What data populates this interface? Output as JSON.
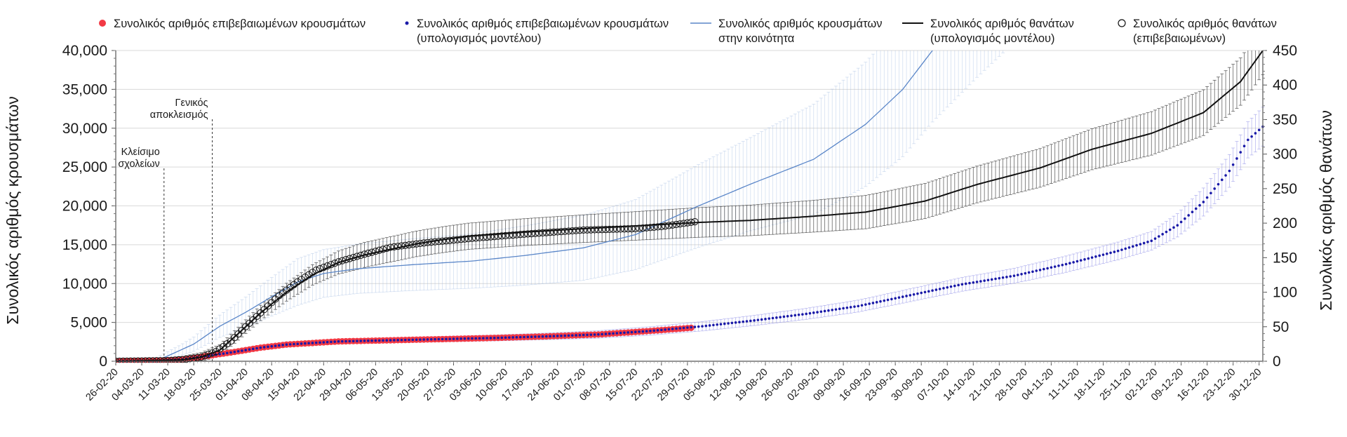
{
  "chart_data": {
    "type": "line",
    "x_axis": {
      "type": "date",
      "start": "2020-02-26",
      "end": "2020-12-31",
      "tick_labels": [
        "26-02-20",
        "04-03-20",
        "11-03-20",
        "18-03-20",
        "25-03-20",
        "01-04-20",
        "08-04-20",
        "15-04-20",
        "22-04-20",
        "29-04-20",
        "06-05-20",
        "13-05-20",
        "20-05-20",
        "27-05-20",
        "03-06-20",
        "10-06-20",
        "17-06-20",
        "24-06-20",
        "01-07-20",
        "08-07-20",
        "15-07-20",
        "22-07-20",
        "29-07-20",
        "05-08-20",
        "12-08-20",
        "19-08-20",
        "26-08-20",
        "02-09-20",
        "09-09-20",
        "16-09-20",
        "23-09-20",
        "30-09-20",
        "07-10-20",
        "14-10-20",
        "21-10-20",
        "28-10-20",
        "04-11-20",
        "11-11-20",
        "18-11-20",
        "25-11-20",
        "02-12-20",
        "09-12-20",
        "16-12-20",
        "23-12-20",
        "30-12-20"
      ]
    },
    "y_axis_left": {
      "label": "Συνολικός αριθμός κρουσμάτων",
      "ylim": [
        0,
        40000
      ],
      "tick_labels": [
        "0",
        "5,000",
        "10,000",
        "15,000",
        "20,000",
        "25,000",
        "30,000",
        "35,000",
        "40,000"
      ]
    },
    "y_axis_right": {
      "label": "Συνολικός αριθμός θανάτων",
      "ylim": [
        0,
        450
      ],
      "tick_labels": [
        "0",
        "50",
        "100",
        "150",
        "200",
        "250",
        "300",
        "350",
        "400",
        "450"
      ]
    },
    "grid": true,
    "legend_position": "top",
    "annotations": [
      {
        "date": "2020-03-10",
        "lines": [
          "Κλείσιμο",
          "σχολείων"
        ]
      },
      {
        "date": "2020-03-23",
        "lines": [
          "Γενικός",
          "αποκλεισμός"
        ]
      }
    ],
    "series": [
      {
        "name": "Συνολικός αριθμός επιβεβαιωμένων κρουσμάτων",
        "axis": "left",
        "style": "large-dots",
        "color": "#f23a45",
        "points": [
          [
            "2020-02-26",
            0
          ],
          [
            "2020-03-08",
            30
          ],
          [
            "2020-03-15",
            230
          ],
          [
            "2020-03-22",
            700
          ],
          [
            "2020-03-29",
            1200
          ],
          [
            "2020-04-05",
            1750
          ],
          [
            "2020-04-12",
            2150
          ],
          [
            "2020-04-19",
            2350
          ],
          [
            "2020-04-26",
            2550
          ],
          [
            "2020-05-10",
            2700
          ],
          [
            "2020-05-24",
            2850
          ],
          [
            "2020-06-07",
            3000
          ],
          [
            "2020-06-21",
            3200
          ],
          [
            "2020-07-05",
            3450
          ],
          [
            "2020-07-19",
            3900
          ],
          [
            "2020-07-30",
            4300
          ]
        ]
      },
      {
        "name": "Συνολικός αριθμός επιβεβαιωμένων κρουσμάτων (υπολογισμός μοντέλου)",
        "axis": "left",
        "style": "small-dots",
        "color": "#1a1aa8",
        "points": [
          [
            "2020-02-26",
            0
          ],
          [
            "2020-03-08",
            30
          ],
          [
            "2020-03-15",
            230
          ],
          [
            "2020-03-22",
            700
          ],
          [
            "2020-03-29",
            1200
          ],
          [
            "2020-04-05",
            1750
          ],
          [
            "2020-04-12",
            2150
          ],
          [
            "2020-04-19",
            2350
          ],
          [
            "2020-04-26",
            2550
          ],
          [
            "2020-05-10",
            2700
          ],
          [
            "2020-05-24",
            2850
          ],
          [
            "2020-06-07",
            3000
          ],
          [
            "2020-06-21",
            3200
          ],
          [
            "2020-07-05",
            3450
          ],
          [
            "2020-07-19",
            3900
          ],
          [
            "2020-08-02",
            4500
          ],
          [
            "2020-08-16",
            5250
          ],
          [
            "2020-08-30",
            6100
          ],
          [
            "2020-09-13",
            7100
          ],
          [
            "2020-09-27",
            8500
          ],
          [
            "2020-10-11",
            9900
          ],
          [
            "2020-10-25",
            11000
          ],
          [
            "2020-11-08",
            12500
          ],
          [
            "2020-11-22",
            14200
          ],
          [
            "2020-12-01",
            15500
          ],
          [
            "2020-12-08",
            17500
          ],
          [
            "2020-12-15",
            20500
          ],
          [
            "2020-12-22",
            24500
          ],
          [
            "2020-12-27",
            28500
          ],
          [
            "2020-12-31",
            30200
          ]
        ],
        "error_band": [
          [
            "2020-02-26",
            0
          ],
          [
            "2020-04-15",
            250
          ],
          [
            "2020-06-15",
            400
          ],
          [
            "2020-08-15",
            650
          ],
          [
            "2020-10-15",
            900
          ],
          [
            "2020-12-01",
            1200
          ],
          [
            "2020-12-31",
            2500
          ]
        ]
      },
      {
        "name": "Συνολικός αριθμός κρουσμάτων στην κοινότητα",
        "axis": "left",
        "style": "line",
        "color": "#5a86c8",
        "points": [
          [
            "2020-02-26",
            0
          ],
          [
            "2020-03-08",
            50
          ],
          [
            "2020-03-12",
            900
          ],
          [
            "2020-03-18",
            2200
          ],
          [
            "2020-03-25",
            4500
          ],
          [
            "2020-04-01",
            6300
          ],
          [
            "2020-04-08",
            8300
          ],
          [
            "2020-04-15",
            10200
          ],
          [
            "2020-04-22",
            11300
          ],
          [
            "2020-05-01",
            11900
          ],
          [
            "2020-05-15",
            12400
          ],
          [
            "2020-06-01",
            12900
          ],
          [
            "2020-06-15",
            13600
          ],
          [
            "2020-07-01",
            14600
          ],
          [
            "2020-07-15",
            16300
          ],
          [
            "2020-08-01",
            20000
          ],
          [
            "2020-08-15",
            22800
          ],
          [
            "2020-09-01",
            26000
          ],
          [
            "2020-09-15",
            30500
          ],
          [
            "2020-09-25",
            35000
          ],
          [
            "2020-10-03",
            40000
          ]
        ],
        "error_band": [
          [
            "2020-02-26",
            0
          ],
          [
            "2020-03-15",
            700
          ],
          [
            "2020-04-15",
            3000
          ],
          [
            "2020-06-01",
            3500
          ],
          [
            "2020-07-15",
            4500
          ],
          [
            "2020-08-15",
            6000
          ],
          [
            "2020-09-15",
            8000
          ],
          [
            "2020-10-15",
            10000
          ],
          [
            "2020-11-05",
            12000
          ]
        ]
      },
      {
        "name": "Συνολικός αριθμός θανάτων (υπολογισμός μοντέλου)",
        "axis": "right",
        "style": "line",
        "color": "#111111",
        "points": [
          [
            "2020-02-26",
            0
          ],
          [
            "2020-03-15",
            2
          ],
          [
            "2020-03-20",
            6
          ],
          [
            "2020-03-25",
            16
          ],
          [
            "2020-03-30",
            40
          ],
          [
            "2020-04-05",
            70
          ],
          [
            "2020-04-12",
            100
          ],
          [
            "2020-04-19",
            125
          ],
          [
            "2020-04-26",
            143
          ],
          [
            "2020-05-03",
            154
          ],
          [
            "2020-05-10",
            162
          ],
          [
            "2020-05-17",
            170
          ],
          [
            "2020-05-24",
            176
          ],
          [
            "2020-05-31",
            181
          ],
          [
            "2020-06-15",
            187
          ],
          [
            "2020-07-01",
            192
          ],
          [
            "2020-07-15",
            196
          ],
          [
            "2020-08-01",
            201
          ],
          [
            "2020-08-15",
            204
          ],
          [
            "2020-09-01",
            210
          ],
          [
            "2020-09-15",
            216
          ],
          [
            "2020-10-01",
            232
          ],
          [
            "2020-10-15",
            256
          ],
          [
            "2020-11-01",
            280
          ],
          [
            "2020-11-15",
            307
          ],
          [
            "2020-12-01",
            330
          ],
          [
            "2020-12-15",
            360
          ],
          [
            "2020-12-25",
            405
          ],
          [
            "2020-12-31",
            450
          ]
        ],
        "error_band": [
          [
            "2020-02-26",
            0
          ],
          [
            "2020-04-01",
            10
          ],
          [
            "2020-05-01",
            18
          ],
          [
            "2020-07-01",
            20
          ],
          [
            "2020-09-01",
            23
          ],
          [
            "2020-11-01",
            28
          ],
          [
            "2020-12-31",
            35
          ]
        ]
      },
      {
        "name": "Συνολικός αριθμός θανάτων (επιβεβαιωμένων)",
        "axis": "right",
        "style": "open-circles",
        "color": "#111111",
        "points": [
          [
            "2020-02-26",
            0
          ],
          [
            "2020-03-12",
            1
          ],
          [
            "2020-03-16",
            3
          ],
          [
            "2020-03-20",
            6
          ],
          [
            "2020-03-24",
            14
          ],
          [
            "2020-03-28",
            29
          ],
          [
            "2020-04-01",
            50
          ],
          [
            "2020-04-05",
            70
          ],
          [
            "2020-04-10",
            95
          ],
          [
            "2020-04-15",
            115
          ],
          [
            "2020-04-20",
            132
          ],
          [
            "2020-04-26",
            144
          ],
          [
            "2020-05-03",
            155
          ],
          [
            "2020-05-10",
            165
          ],
          [
            "2020-05-20",
            172
          ],
          [
            "2020-06-01",
            178
          ],
          [
            "2020-06-15",
            184
          ],
          [
            "2020-07-01",
            190
          ],
          [
            "2020-07-15",
            192
          ],
          [
            "2020-07-22",
            195
          ],
          [
            "2020-07-31",
            202
          ]
        ]
      }
    ]
  },
  "legend": [
    {
      "line1": "Συνολικός αριθμός επιβεβαιωμένων κρουσμάτων",
      "line2": ""
    },
    {
      "line1": "Συνολικός αριθμός επιβεβαιωμένων κρουσμάτων",
      "line2": "(υπολογισμός μοντέλου)"
    },
    {
      "line1": "Συνολικός αριθμός κρουσμάτων",
      "line2": "στην κοινότητα"
    },
    {
      "line1": "Συνολικός αριθμός θανάτων",
      "line2": "(υπολογισμός μοντέλου)"
    },
    {
      "line1": "Συνολικός αριθμός θανάτων",
      "line2": "(επιβεβαιωμένων)"
    }
  ]
}
